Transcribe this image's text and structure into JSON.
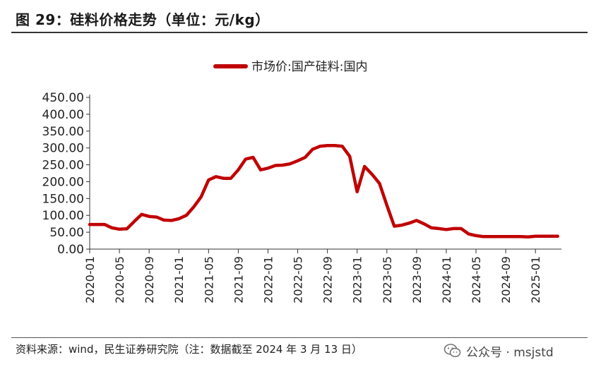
{
  "header": {
    "title": "图 29：硅料价格走势（单位：元/kg）"
  },
  "footer": {
    "source": "资料来源：wind，民生证券研究院（注：数据截至 2024 年 3 月 13 日）",
    "watermark": "公众号 · msjstd"
  },
  "colors": {
    "series": "#c00000",
    "axis": "#333333"
  },
  "chart_data": {
    "type": "line",
    "title": "",
    "xlabel": "",
    "ylabel": "",
    "legend_position": "top-center",
    "grid": false,
    "ylim": [
      0,
      450
    ],
    "y_ticks": [
      "0.00",
      "50.00",
      "100.00",
      "150.00",
      "200.00",
      "250.00",
      "300.00",
      "350.00",
      "400.00",
      "450.00"
    ],
    "x_ticks": [
      "2020-01",
      "2020-05",
      "2020-09",
      "2021-01",
      "2021-05",
      "2021-09",
      "2022-01",
      "2022-05",
      "2022-09",
      "2023-01",
      "2023-05",
      "2023-09",
      "2024-01",
      "2024-05",
      "2024-09",
      "2025-01"
    ],
    "series": [
      {
        "name": "市场价:国产硅料:国内",
        "points": [
          [
            "2020-01",
            73
          ],
          [
            "2020-02",
            73
          ],
          [
            "2020-03",
            73
          ],
          [
            "2020-04",
            63
          ],
          [
            "2020-05",
            59
          ],
          [
            "2020-06",
            60
          ],
          [
            "2020-07",
            82
          ],
          [
            "2020-08",
            103
          ],
          [
            "2020-09",
            97
          ],
          [
            "2020-10",
            95
          ],
          [
            "2020-11",
            86
          ],
          [
            "2020-12",
            85
          ],
          [
            "2021-01",
            90
          ],
          [
            "2021-02",
            100
          ],
          [
            "2021-03",
            125
          ],
          [
            "2021-04",
            155
          ],
          [
            "2021-05",
            205
          ],
          [
            "2021-06",
            215
          ],
          [
            "2021-07",
            210
          ],
          [
            "2021-08",
            210
          ],
          [
            "2021-09",
            235
          ],
          [
            "2021-10",
            267
          ],
          [
            "2021-11",
            272
          ],
          [
            "2021-12",
            235
          ],
          [
            "2022-01",
            240
          ],
          [
            "2022-02",
            248
          ],
          [
            "2022-03",
            249
          ],
          [
            "2022-04",
            253
          ],
          [
            "2022-05",
            262
          ],
          [
            "2022-06",
            272
          ],
          [
            "2022-07",
            296
          ],
          [
            "2022-08",
            305
          ],
          [
            "2022-09",
            307
          ],
          [
            "2022-10",
            307
          ],
          [
            "2022-11",
            305
          ],
          [
            "2022-12",
            275
          ],
          [
            "2023-01",
            170
          ],
          [
            "2023-02",
            245
          ],
          [
            "2023-03",
            222
          ],
          [
            "2023-04",
            195
          ],
          [
            "2023-05",
            130
          ],
          [
            "2023-06",
            68
          ],
          [
            "2023-07",
            71
          ],
          [
            "2023-08",
            77
          ],
          [
            "2023-09",
            85
          ],
          [
            "2023-10",
            75
          ],
          [
            "2023-11",
            63
          ],
          [
            "2023-12",
            61
          ],
          [
            "2024-01",
            58
          ],
          [
            "2024-02",
            61
          ],
          [
            "2024-03",
            61
          ],
          [
            "2024-04",
            45
          ],
          [
            "2024-05",
            40
          ],
          [
            "2024-06",
            37
          ],
          [
            "2024-07",
            37
          ],
          [
            "2024-08",
            37
          ],
          [
            "2024-09",
            37
          ],
          [
            "2024-10",
            37
          ],
          [
            "2024-11",
            37
          ],
          [
            "2024-12",
            36
          ],
          [
            "2025-01",
            38
          ],
          [
            "2025-02",
            38
          ],
          [
            "2025-03",
            38
          ],
          [
            "2025-04",
            38
          ]
        ]
      }
    ]
  }
}
